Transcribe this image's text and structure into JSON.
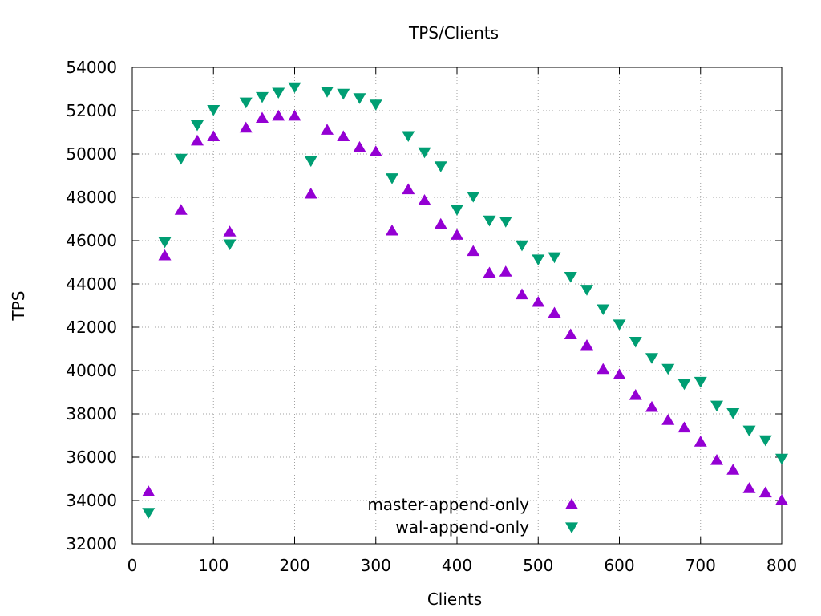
{
  "chart_data": {
    "type": "scatter",
    "title": "TPS/Clients",
    "xlabel": "Clients",
    "ylabel": "TPS",
    "xlim": [
      0,
      800
    ],
    "ylim": [
      32000,
      54000
    ],
    "xticks": [
      0,
      100,
      200,
      300,
      400,
      500,
      600,
      700,
      800
    ],
    "yticks": [
      32000,
      34000,
      36000,
      38000,
      40000,
      42000,
      44000,
      46000,
      48000,
      50000,
      52000,
      54000
    ],
    "grid": true,
    "legend_position": "bottom-center",
    "series": [
      {
        "name": "master-append-only",
        "marker": "triangle-up",
        "color": "#9400d3",
        "points": [
          [
            20,
            34400
          ],
          [
            40,
            45300
          ],
          [
            60,
            47400
          ],
          [
            80,
            50600
          ],
          [
            100,
            50800
          ],
          [
            120,
            46400
          ],
          [
            140,
            51200
          ],
          [
            160,
            51650
          ],
          [
            180,
            51750
          ],
          [
            200,
            51750
          ],
          [
            220,
            48150
          ],
          [
            240,
            51100
          ],
          [
            260,
            50800
          ],
          [
            280,
            50300
          ],
          [
            300,
            50100
          ],
          [
            320,
            46450
          ],
          [
            340,
            48350
          ],
          [
            360,
            47850
          ],
          [
            380,
            46750
          ],
          [
            400,
            46250
          ],
          [
            420,
            45500
          ],
          [
            440,
            44500
          ],
          [
            460,
            44550
          ],
          [
            480,
            43500
          ],
          [
            500,
            43150
          ],
          [
            520,
            42650
          ],
          [
            540,
            41650
          ],
          [
            560,
            41150
          ],
          [
            580,
            40050
          ],
          [
            600,
            39800
          ],
          [
            620,
            38850
          ],
          [
            640,
            38300
          ],
          [
            660,
            37700
          ],
          [
            680,
            37350
          ],
          [
            700,
            36700
          ],
          [
            720,
            35850
          ],
          [
            740,
            35400
          ],
          [
            760,
            34550
          ],
          [
            780,
            34350
          ],
          [
            800,
            34000
          ]
        ]
      },
      {
        "name": "wal-append-only",
        "marker": "triangle-down",
        "color": "#009e73",
        "points": [
          [
            20,
            33450
          ],
          [
            40,
            45950
          ],
          [
            60,
            49800
          ],
          [
            80,
            51350
          ],
          [
            100,
            52050
          ],
          [
            120,
            45850
          ],
          [
            140,
            52400
          ],
          [
            160,
            52650
          ],
          [
            180,
            52850
          ],
          [
            200,
            53100
          ],
          [
            220,
            49700
          ],
          [
            240,
            52900
          ],
          [
            260,
            52800
          ],
          [
            280,
            52600
          ],
          [
            300,
            52300
          ],
          [
            320,
            48900
          ],
          [
            340,
            50850
          ],
          [
            360,
            50100
          ],
          [
            380,
            49450
          ],
          [
            400,
            47450
          ],
          [
            420,
            48050
          ],
          [
            440,
            46950
          ],
          [
            460,
            46900
          ],
          [
            480,
            45800
          ],
          [
            500,
            45150
          ],
          [
            520,
            45250
          ],
          [
            540,
            44350
          ],
          [
            560,
            43750
          ],
          [
            580,
            42850
          ],
          [
            600,
            42150
          ],
          [
            620,
            41350
          ],
          [
            640,
            40600
          ],
          [
            660,
            40100
          ],
          [
            680,
            39400
          ],
          [
            700,
            39500
          ],
          [
            720,
            38400
          ],
          [
            740,
            38050
          ],
          [
            760,
            37250
          ],
          [
            780,
            36800
          ],
          [
            800,
            35950
          ]
        ]
      }
    ]
  }
}
